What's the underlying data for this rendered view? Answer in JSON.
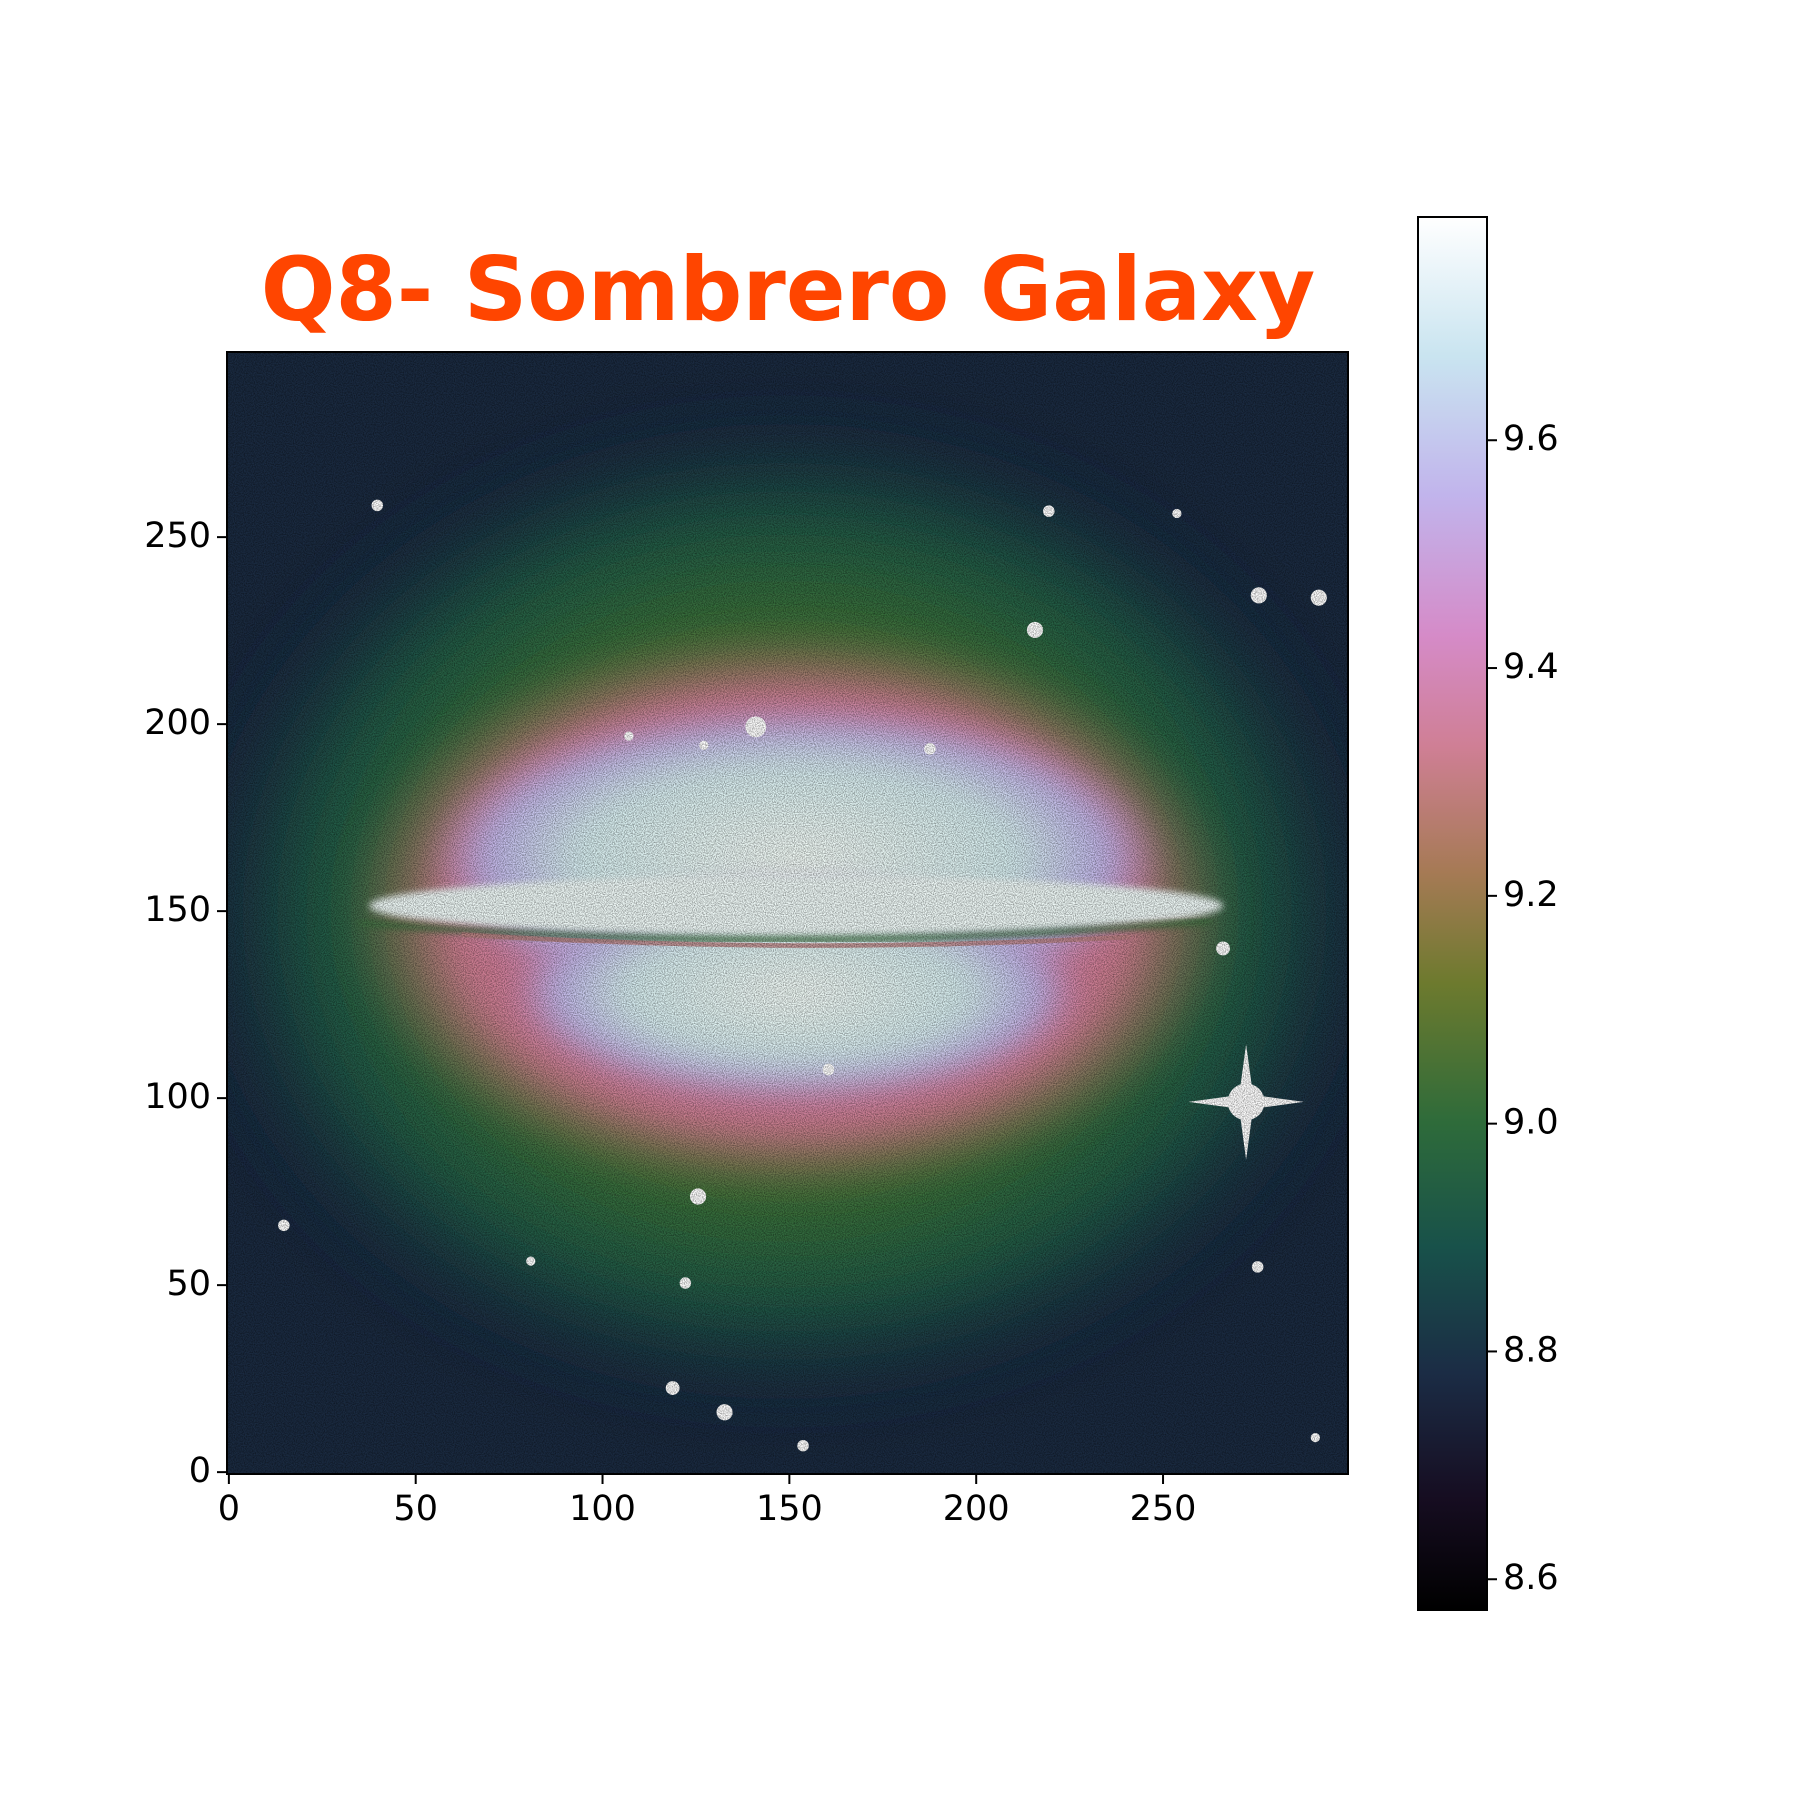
{
  "chart_data": {
    "type": "image",
    "title": "Q8- Sombrero Galaxy",
    "xlim": [
      -0.5,
      299.5
    ],
    "ylim": [
      -0.5,
      299.5
    ],
    "xticks": [
      0,
      50,
      100,
      150,
      200,
      250
    ],
    "yticks": [
      0,
      50,
      100,
      150,
      200,
      250
    ],
    "colormap": "cubehelix",
    "colorbar": {
      "lim": [
        8.573,
        9.796
      ],
      "ticks": [
        8.6,
        8.8,
        {
          "value": 9,
          "label": "9.0"
        },
        9.2,
        9.4,
        9.6
      ]
    }
  }
}
